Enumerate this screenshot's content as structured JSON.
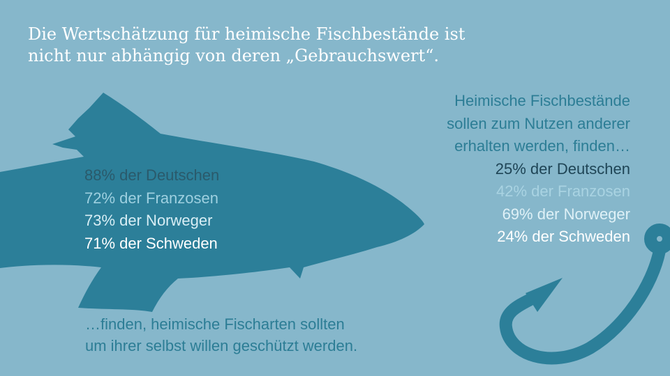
{
  "headline": {
    "line1": "Die Wertschätzung für heimische Fischbestände ist",
    "line2": "nicht nur abhängig von deren „Gebrauchswert“."
  },
  "left_stats": [
    {
      "text": "88% der Deutschen",
      "color": "#2a5a6b"
    },
    {
      "text": "72% der Franzosen",
      "color": "#9ed0e0"
    },
    {
      "text": "73% der Norweger",
      "color": "#d8eef5"
    },
    {
      "text": "71% der Schweden",
      "color": "#ffffff"
    }
  ],
  "bottom_text": {
    "line1": "…finden, heimische Fischarten sollten",
    "line2": "um ihrer selbst willen geschützt werden."
  },
  "right_intro": {
    "line1": "Heimische Fischbestände",
    "line2": "sollen zum Nutzen anderer",
    "line3": "erhalten werden, finden…"
  },
  "right_stats": [
    {
      "text": "25% der Deutschen",
      "color": "#1f4556"
    },
    {
      "text": "42% der Franzosen",
      "color": "#a9d3e2"
    },
    {
      "text": "69% der Norweger",
      "color": "#dff1f7"
    },
    {
      "text": "24% der Schweden",
      "color": "#ffffff"
    }
  ],
  "colors": {
    "background": "#86b7cb",
    "fish": "#2c7f99",
    "hook": "#2c7f99",
    "headline": "#ffffff"
  },
  "icons": {
    "fish": "fish-silhouette-icon",
    "hook": "fishing-hook-icon"
  }
}
